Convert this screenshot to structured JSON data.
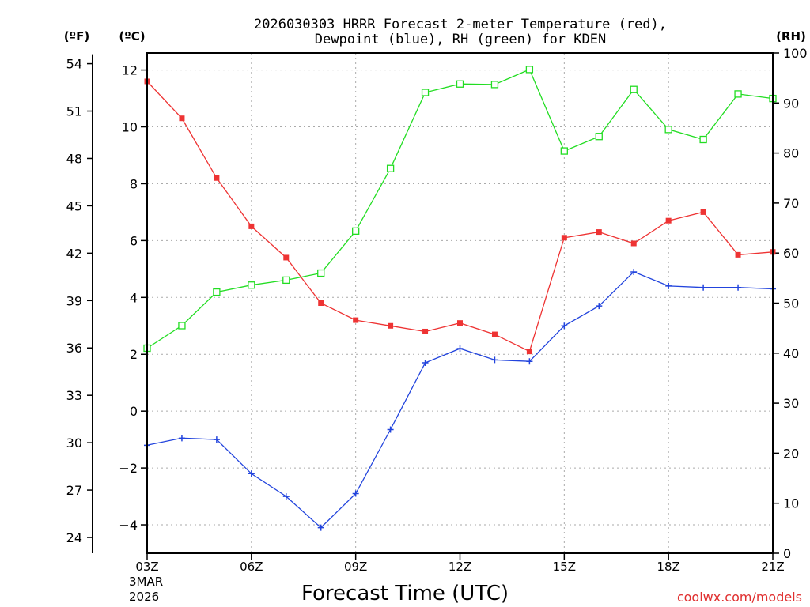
{
  "chart_data": {
    "type": "line",
    "title_line1": "2026030303 HRRR Forecast 2-meter Temperature (red),",
    "title_line2": "Dewpoint (blue), RH (green) for KDEN",
    "xlabel": "Forecast Time (UTC)",
    "date_labels": [
      "3MAR",
      "2026"
    ],
    "units": {
      "fahrenheit": "(ºF)",
      "celsius": "(ºC)",
      "rh": "(RH)"
    },
    "credit": "coolwx.com/models",
    "x": [
      3,
      4,
      5,
      6,
      7,
      8,
      9,
      10,
      11,
      12,
      13,
      14,
      15,
      16,
      17,
      18,
      19,
      20,
      21
    ],
    "x_ticks": [
      {
        "x": 3,
        "label": "03Z"
      },
      {
        "x": 6,
        "label": "06Z"
      },
      {
        "x": 9,
        "label": "09Z"
      },
      {
        "x": 12,
        "label": "12Z"
      },
      {
        "x": 15,
        "label": "15Z"
      },
      {
        "x": 18,
        "label": "18Z"
      },
      {
        "x": 21,
        "label": "21Z"
      }
    ],
    "xlim": [
      3,
      21
    ],
    "celsius_ylim": [
      -5,
      12.6
    ],
    "celsius_ticks": [
      12,
      10,
      8,
      6,
      4,
      2,
      0,
      -2,
      -4
    ],
    "celsius_tick_labels": [
      "12",
      "10",
      "8",
      "6",
      "4",
      "2",
      "0",
      "−2",
      "−4"
    ],
    "fahrenheit_ticks": [
      54,
      51,
      48,
      45,
      42,
      39,
      36,
      33,
      30,
      27,
      24
    ],
    "rh_ylim": [
      0,
      100
    ],
    "rh_ticks": [
      100,
      90,
      80,
      70,
      60,
      50,
      40,
      30,
      20,
      10,
      0
    ],
    "series": [
      {
        "name": "Temperature",
        "unit": "C",
        "color": "#ee3333",
        "marker": "square-filled",
        "values": [
          11.6,
          10.3,
          8.2,
          6.5,
          5.4,
          3.8,
          3.2,
          3.0,
          2.8,
          3.1,
          2.7,
          2.1,
          6.1,
          6.3,
          5.9,
          6.7,
          7.0,
          5.5,
          5.6
        ]
      },
      {
        "name": "Dewpoint",
        "unit": "C",
        "color": "#2244dd",
        "marker": "plus",
        "values": [
          -1.2,
          -0.95,
          -1.0,
          -2.2,
          -3.0,
          -4.1,
          -2.9,
          -0.65,
          1.7,
          2.2,
          1.8,
          1.75,
          3.0,
          3.7,
          4.9,
          4.4,
          4.35,
          4.35,
          4.3
        ]
      },
      {
        "name": "RH",
        "unit": "%",
        "color": "#22dd22",
        "marker": "square-open",
        "values": [
          41,
          45.5,
          52.2,
          53.6,
          54.6,
          56,
          64.4,
          76.9,
          92.1,
          93.8,
          93.7,
          96.7,
          80.4,
          83.3,
          92.7,
          84.7,
          82.7,
          91.8,
          90.9
        ]
      }
    ]
  }
}
